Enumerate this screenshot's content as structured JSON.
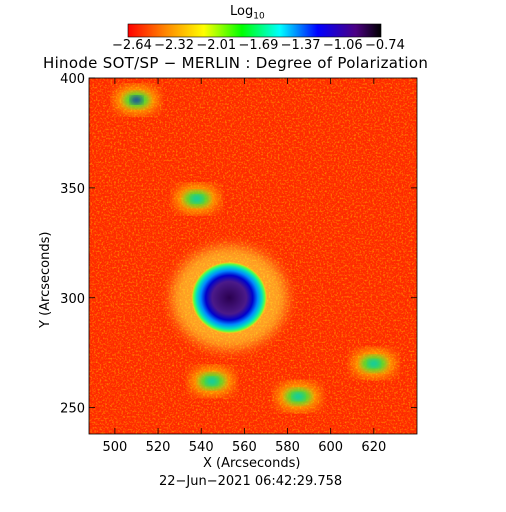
{
  "colorbar": {
    "title_text": "Log",
    "title_sub": "10",
    "ticks": [
      "−2.64",
      "−2.32",
      "−2.01",
      "−1.69",
      "−1.37",
      "−1.06",
      "−0.74"
    ],
    "range": [
      -2.64,
      -0.74
    ]
  },
  "chart_data": {
    "type": "heatmap",
    "title": "Hinode SOT/SP − MERLIN : Degree of Polarization",
    "xlabel": "X (Arcseconds)",
    "ylabel": "Y (Arcseconds)",
    "xlim": [
      488,
      640
    ],
    "ylim": [
      238,
      400
    ],
    "xticks": [
      500,
      520,
      540,
      560,
      580,
      600,
      620
    ],
    "yticks": [
      250,
      300,
      350,
      400
    ],
    "timestamp": "22−Jun−2021 06:42:29.758",
    "colormap": [
      "#ff0000",
      "#ff8800",
      "#ffff00",
      "#00ff00",
      "#00ffff",
      "#0000ff",
      "#4b0082",
      "#000000"
    ],
    "features": [
      {
        "kind": "sunspot",
        "x": 553,
        "y": 300,
        "value": -0.74
      },
      {
        "kind": "plage",
        "x": 510,
        "y": 390,
        "value": -1.2
      },
      {
        "kind": "plage",
        "x": 538,
        "y": 345,
        "value": -1.6
      },
      {
        "kind": "plage",
        "x": 545,
        "y": 262,
        "value": -1.5
      },
      {
        "kind": "plage",
        "x": 585,
        "y": 255,
        "value": -1.6
      },
      {
        "kind": "plage",
        "x": 620,
        "y": 270,
        "value": -1.6
      }
    ]
  }
}
